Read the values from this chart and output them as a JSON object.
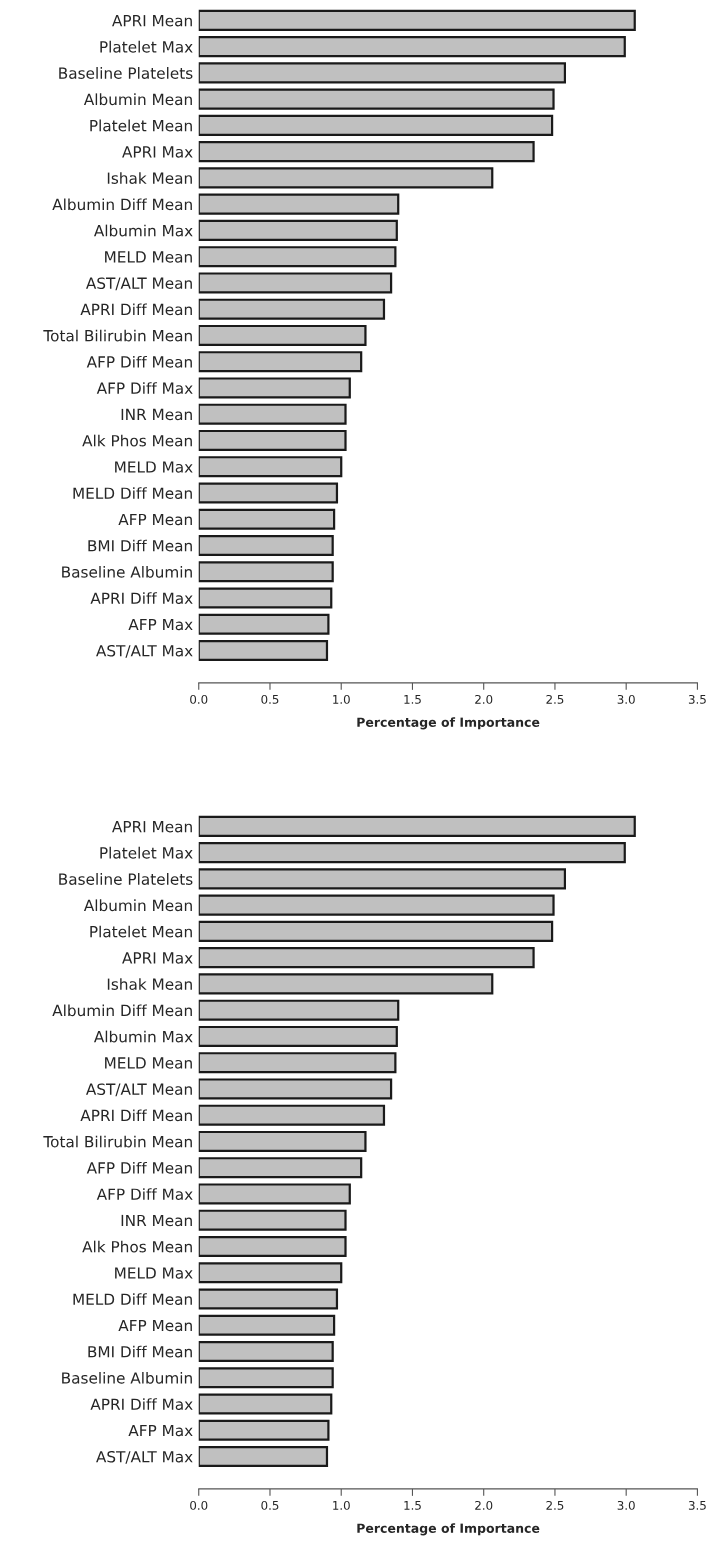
{
  "chart_data": [
    {
      "type": "bar",
      "orientation": "horizontal",
      "xlabel": "Percentage of Importance",
      "categories": [
        "APRI Mean",
        "Platelet Max",
        "Baseline Platelets",
        "Albumin Mean",
        "Platelet Mean",
        "APRI Max",
        "Ishak Mean",
        "Albumin Diff Mean",
        "Albumin Max",
        "MELD Mean",
        "AST/ALT Mean",
        "APRI Diff Mean",
        "Total Bilirubin Mean",
        "AFP Diff Mean",
        "AFP Diff Max",
        "INR Mean",
        "Alk Phos Mean",
        "MELD Max",
        "MELD Diff Mean",
        "AFP Mean",
        "BMI Diff Mean",
        "Baseline Albumin",
        "APRI Diff Max",
        "AFP Max",
        "AST/ALT Max"
      ],
      "values": [
        3.06,
        2.99,
        2.57,
        2.49,
        2.48,
        2.35,
        2.06,
        1.4,
        1.39,
        1.38,
        1.35,
        1.3,
        1.17,
        1.14,
        1.06,
        1.03,
        1.03,
        1.0,
        0.97,
        0.95,
        0.94,
        0.94,
        0.93,
        0.91,
        0.9
      ],
      "color": "#c0c0c0",
      "xlim": [
        0,
        3.5
      ],
      "xticks": [
        {
          "value": 0,
          "label": "0.0"
        },
        {
          "value": 0.5,
          "label": "0.5"
        },
        {
          "value": 1,
          "label": "1.0"
        },
        {
          "value": 1.5,
          "label": "1.5"
        },
        {
          "value": 2,
          "label": "2.0"
        },
        {
          "value": 2.5,
          "label": "2.5"
        },
        {
          "value": 3,
          "label": "3.0"
        },
        {
          "value": 3.5,
          "label": "3.5"
        }
      ]
    },
    {
      "type": "bar",
      "orientation": "horizontal",
      "xlabel": "Percentage of Importance",
      "categories": [
        "APRI Mean",
        "Platelet Max",
        "Baseline Platelets",
        "Albumin Mean",
        "Platelet Mean",
        "APRI Max",
        "Ishak Mean",
        "Albumin Diff Mean",
        "Albumin Max",
        "MELD Mean",
        "AST/ALT Mean",
        "APRI Diff Mean",
        "Total Bilirubin Mean",
        "AFP Diff Mean",
        "AFP Diff Max",
        "INR Mean",
        "Alk Phos Mean",
        "MELD Max",
        "MELD Diff Mean",
        "AFP Mean",
        "BMI Diff Mean",
        "Baseline Albumin",
        "APRI Diff Max",
        "AFP Max",
        "AST/ALT Max"
      ],
      "values": [
        3.06,
        2.99,
        2.57,
        2.49,
        2.48,
        2.35,
        2.06,
        1.4,
        1.39,
        1.38,
        1.35,
        1.3,
        1.17,
        1.14,
        1.06,
        1.03,
        1.03,
        1.0,
        0.97,
        0.95,
        0.94,
        0.94,
        0.93,
        0.91,
        0.9
      ],
      "color": "#c0c0c0",
      "xlim": [
        0,
        3.5
      ],
      "xticks": [
        {
          "value": 0,
          "label": "0.0"
        },
        {
          "value": 0.5,
          "label": "0.5"
        },
        {
          "value": 1,
          "label": "1.0"
        },
        {
          "value": 1.5,
          "label": "1.5"
        },
        {
          "value": 2,
          "label": "2.0"
        },
        {
          "value": 2.5,
          "label": "2.5"
        },
        {
          "value": 3,
          "label": "3.0"
        },
        {
          "value": 3.5,
          "label": "3.5"
        }
      ]
    }
  ]
}
